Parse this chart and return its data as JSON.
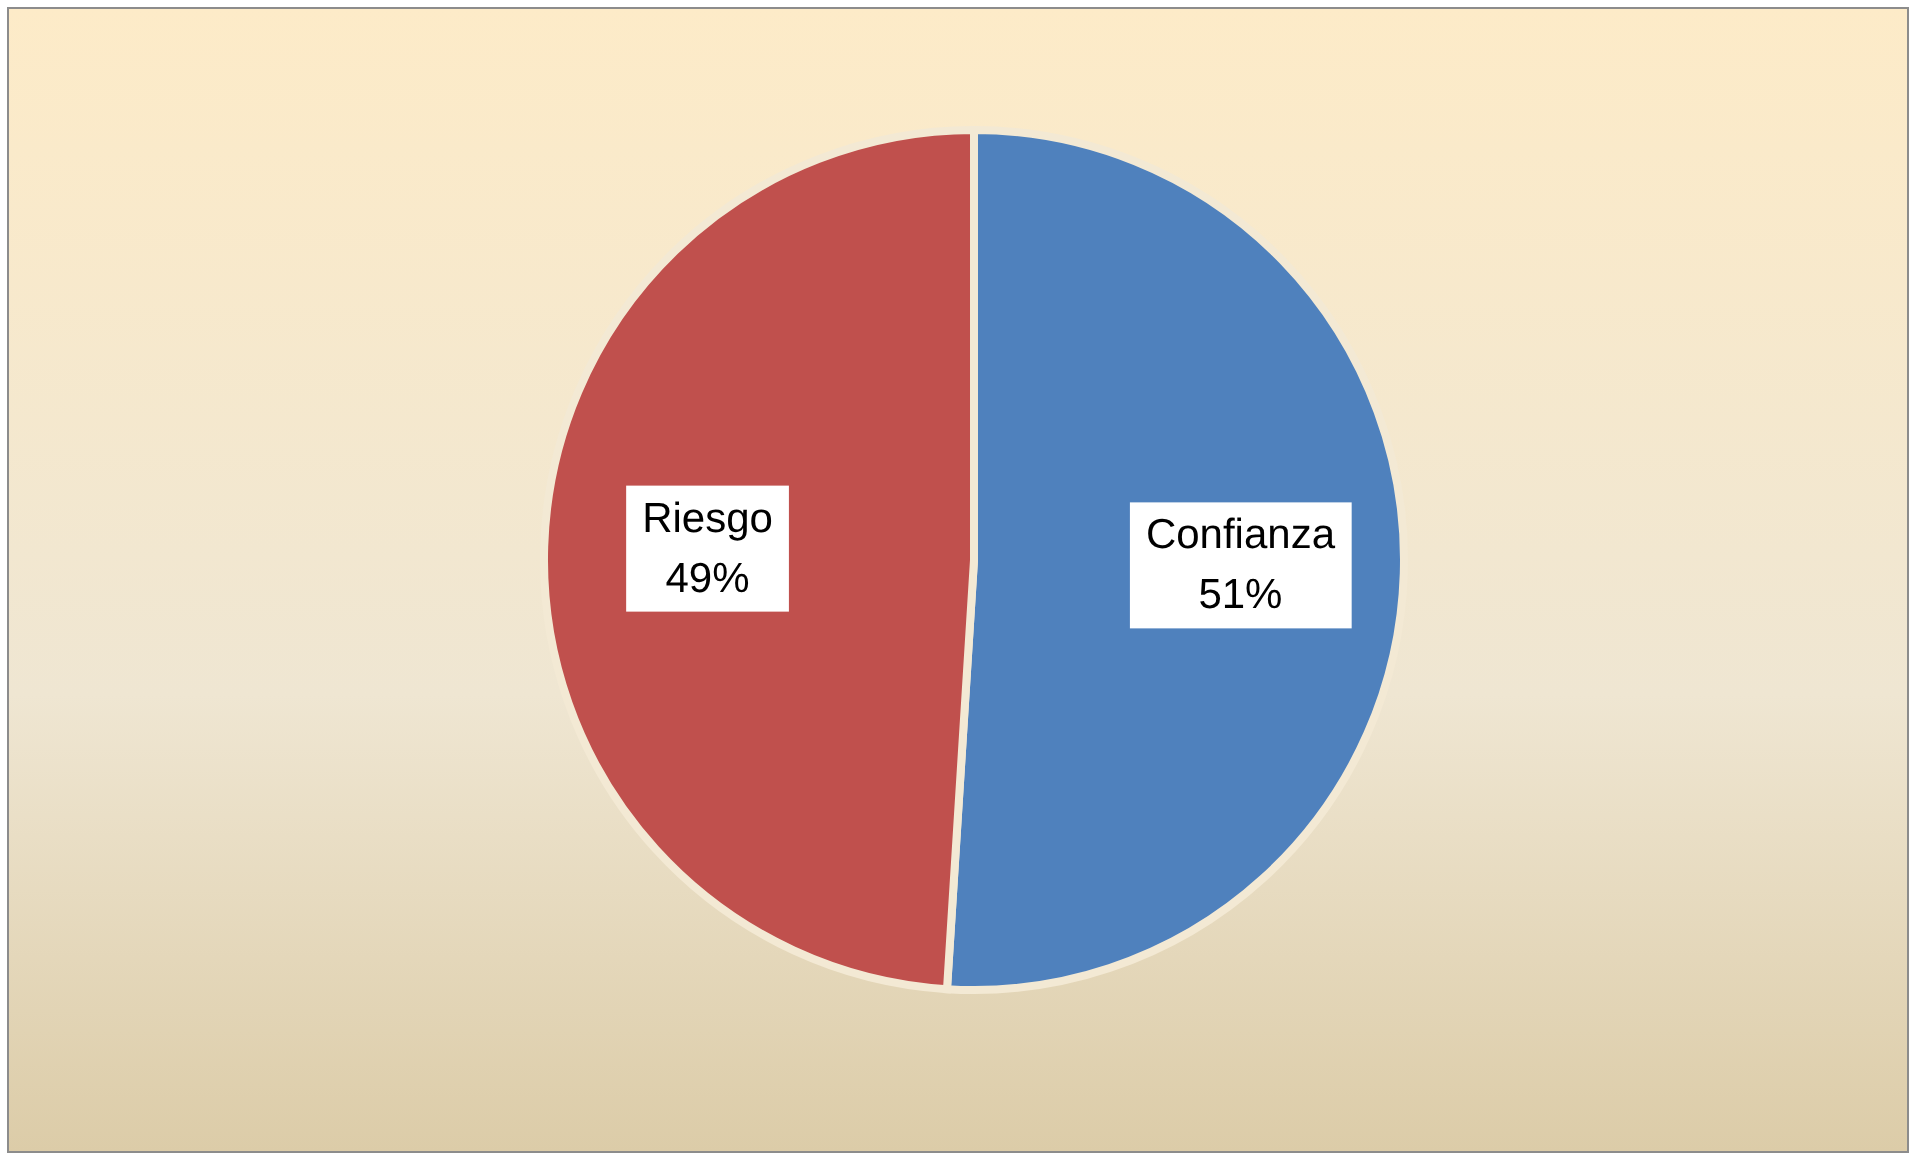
{
  "chart_data": {
    "type": "pie",
    "categories": [
      "Confianza",
      "Riesgo"
    ],
    "values": [
      51,
      49
    ],
    "colors": [
      "#4f81bd",
      "#c0504d"
    ],
    "value_labels": [
      "51%",
      "49%"
    ]
  }
}
